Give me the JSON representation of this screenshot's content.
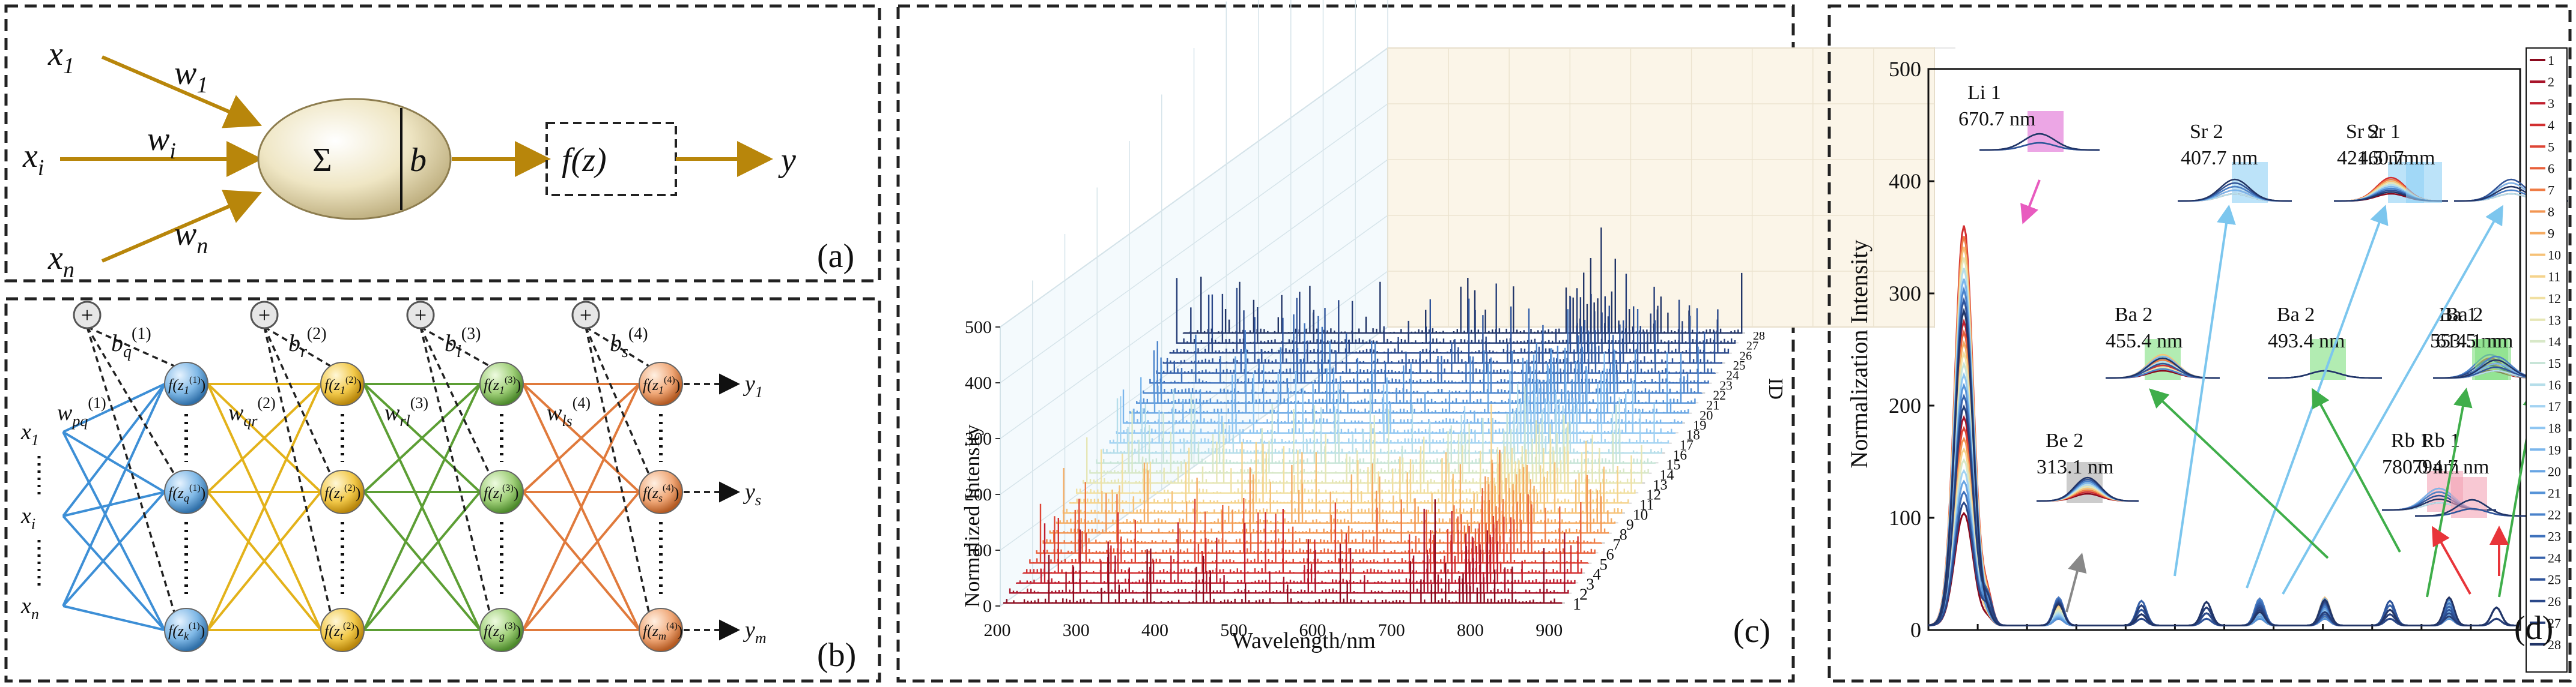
{
  "panel_a": {
    "label": "(a)",
    "inputs": [
      "x",
      "x",
      "x"
    ],
    "input_subs": [
      "1",
      "i",
      "n"
    ],
    "weights": [
      "w",
      "w",
      "w"
    ],
    "weight_subs": [
      "1",
      "i",
      "n"
    ],
    "sum_symbol": "Σ",
    "bias": "b",
    "activation": "f(z)",
    "output": "y"
  },
  "panel_b": {
    "label": "(b)",
    "plus": "+",
    "biases": [
      {
        "sym": "b",
        "sub": "q",
        "sup": "(1)"
      },
      {
        "sym": "b",
        "sub": "r",
        "sup": "(2)"
      },
      {
        "sym": "b",
        "sub": "l",
        "sup": "(3)"
      },
      {
        "sym": "b",
        "sub": "s",
        "sup": "(4)"
      }
    ],
    "weights": [
      {
        "sym": "w",
        "sub": "pq",
        "sup": "(1)"
      },
      {
        "sym": "w",
        "sub": "qr",
        "sup": "(2)"
      },
      {
        "sym": "w",
        "sub": "rl",
        "sup": "(3)"
      },
      {
        "sym": "w",
        "sub": "ls",
        "sup": "(4)"
      }
    ],
    "inputs": [
      {
        "sym": "x",
        "sub": "1"
      },
      {
        "sym": "x",
        "sub": "i"
      },
      {
        "sym": "x",
        "sub": "n"
      }
    ],
    "outputs": [
      {
        "sym": "y",
        "sub": "1"
      },
      {
        "sym": "y",
        "sub": "s"
      },
      {
        "sym": "y",
        "sub": "m"
      }
    ],
    "layers": [
      {
        "color": "#3d8fd6",
        "nodes": [
          [
            "z",
            "1",
            "(1)"
          ],
          [
            "z",
            "q",
            "(1)"
          ],
          [
            "z",
            "k",
            "(1)"
          ]
        ]
      },
      {
        "color": "#e3b21a",
        "nodes": [
          [
            "z",
            "1",
            "(2)"
          ],
          [
            "z",
            "r",
            "(2)"
          ],
          [
            "z",
            "t",
            "(2)"
          ]
        ]
      },
      {
        "color": "#6aae3e",
        "nodes": [
          [
            "z",
            "1",
            "(3)"
          ],
          [
            "z",
            "l",
            "(3)"
          ],
          [
            "z",
            "g",
            "(3)"
          ]
        ]
      },
      {
        "color": "#e07a3c",
        "nodes": [
          [
            "z",
            "1",
            "(4)"
          ],
          [
            "z",
            "s",
            "(4)"
          ],
          [
            "z",
            "m",
            "(4)"
          ]
        ]
      }
    ],
    "node_fn": "f"
  },
  "panel_c": {
    "label": "(c)",
    "ylabel": "Normalized Intensity",
    "xlabel": "Wavelength/nm",
    "zlabel": "ID",
    "y_ticks": [
      "0",
      "100",
      "200",
      "300",
      "400",
      "500"
    ],
    "x_ticks": [
      "200",
      "300",
      "400",
      "500",
      "600",
      "700",
      "800",
      "900"
    ],
    "id_ticks": [
      "1",
      "2",
      "3",
      "4",
      "5",
      "6",
      "7",
      "8",
      "9",
      "10",
      "11",
      "12",
      "13",
      "14",
      "15",
      "16",
      "17",
      "18",
      "19",
      "20",
      "21",
      "22",
      "23",
      "24",
      "25",
      "26",
      "27",
      "28"
    ]
  },
  "panel_d": {
    "label": "(d)",
    "ylabel": "Normalization Intensity",
    "y_ticks": [
      "0",
      "100",
      "200",
      "300",
      "400",
      "500"
    ],
    "insets": [
      {
        "name": "Li 1",
        "wl": "670.7 nm"
      },
      {
        "name": "Sr 2",
        "wl": "407.7 nm"
      },
      {
        "name": "Sr 2",
        "wl": "421.5 nm"
      },
      {
        "name": "Sr 1",
        "wl": "460.7 nm"
      },
      {
        "name": "Ba 2",
        "wl": "455.4 nm"
      },
      {
        "name": "Ba 2",
        "wl": "493.4 nm"
      },
      {
        "name": "Ba 1",
        "wl": "553.5 nm"
      },
      {
        "name": "Ba 2",
        "wl": "614.1 nm"
      },
      {
        "name": "Be 2",
        "wl": "313.1 nm"
      },
      {
        "name": "Rb 1",
        "wl": "780.0 nm"
      },
      {
        "name": "Rb 1",
        "wl": "794.7 nm"
      }
    ],
    "legend": [
      "1",
      "2",
      "3",
      "4",
      "5",
      "6",
      "7",
      "8",
      "9",
      "10",
      "11",
      "12",
      "13",
      "14",
      "15",
      "16",
      "17",
      "18",
      "19",
      "20",
      "21",
      "22",
      "23",
      "24",
      "25",
      "26",
      "27",
      "28"
    ],
    "legend_colors": [
      "#8b0a1e",
      "#a8142a",
      "#c01f2e",
      "#d22f30",
      "#de4535",
      "#e8603b",
      "#ef7c45",
      "#f29552",
      "#f5ac63",
      "#f6c177",
      "#f5d38c",
      "#f1e0a2",
      "#e6e6b5",
      "#d8e8c8",
      "#c8e5d8",
      "#b6deea",
      "#a3d3f2",
      "#8fc6f2",
      "#7bb6ec",
      "#68a5e3",
      "#5794d8",
      "#4a83cb",
      "#3f72bc",
      "#3662ab",
      "#2f549b",
      "#2a4889",
      "#263e78",
      "#223567"
    ]
  }
}
